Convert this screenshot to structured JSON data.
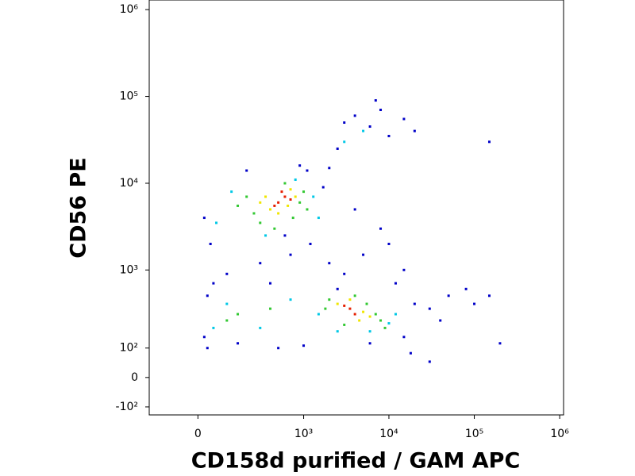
{
  "chart_data": {
    "type": "scatter",
    "x_label": "CD158d purified / GAM APC",
    "y_label": "CD56 PE",
    "xlim": [
      -200,
      1110000
    ],
    "ylim": [
      -135,
      1290000
    ],
    "xticks": [
      0,
      {
        "value": 1000,
        "label": "10³"
      },
      {
        "value": 10000,
        "label": "10⁴"
      },
      {
        "value": 100000,
        "label": "10⁵"
      },
      {
        "value": 1000000,
        "label": "10⁶"
      }
    ],
    "yticks": [
      {
        "value": -100,
        "label": "-10²"
      },
      0,
      {
        "value": 100,
        "label": "10²"
      },
      {
        "value": 1000,
        "label": "10³"
      },
      {
        "value": 10000,
        "label": "10⁴"
      },
      {
        "value": 100000,
        "label": "10⁵"
      },
      {
        "value": 1000000,
        "label": "10⁶"
      }
    ],
    "series": [
      {
        "color": "#0000c8",
        "x": [
          20,
          40,
          1700,
          2000,
          3000,
          4000,
          6000,
          8000,
          10000,
          15000,
          2500,
          7000,
          20000,
          1200,
          2000,
          5000,
          10000,
          3000,
          700,
          300,
          100,
          30,
          20,
          150,
          500,
          1000,
          6000,
          15000,
          20000,
          30000,
          50000,
          100000,
          150000,
          200000,
          30000,
          18000,
          600,
          200,
          900,
          1100,
          4000,
          8000,
          15000,
          80000,
          40000,
          12000,
          2500,
          400,
          50,
          150000,
          30
        ],
        "y": [
          4000,
          2000,
          9000,
          15000,
          50000,
          60000,
          45000,
          70000,
          35000,
          55000,
          25000,
          90000,
          40000,
          2000,
          1200,
          1500,
          2000,
          900,
          1500,
          1200,
          900,
          500,
          150,
          120,
          100,
          110,
          120,
          150,
          400,
          350,
          500,
          400,
          500,
          120,
          50,
          80,
          2500,
          14000,
          16000,
          14000,
          5000,
          3000,
          1000,
          600,
          250,
          700,
          600,
          700,
          700,
          30000,
          100
        ]
      },
      {
        "color": "#00c8e6",
        "x": [
          120,
          1300,
          350,
          800,
          1500,
          60,
          1500,
          10000,
          2500,
          6000,
          12000,
          100,
          300,
          700,
          5000,
          3000,
          50
        ],
        "y": [
          8000,
          7000,
          2500,
          11000,
          4000,
          3500,
          300,
          230,
          180,
          180,
          300,
          400,
          200,
          450,
          40000,
          30000,
          200
        ]
      },
      {
        "color": "#32c832",
        "x": [
          250,
          300,
          900,
          1000,
          200,
          450,
          600,
          750,
          150,
          1100,
          2000,
          1800,
          7000,
          8000,
          3000,
          5500,
          4000,
          9000,
          150,
          400,
          100
        ],
        "y": [
          4500,
          3500,
          6000,
          8000,
          7000,
          3000,
          10000,
          4000,
          5500,
          5000,
          450,
          350,
          300,
          250,
          220,
          400,
          500,
          200,
          300,
          350,
          250
        ]
      },
      {
        "color": "#f0e600",
        "x": [
          400,
          650,
          800,
          350,
          500,
          700,
          300,
          2500,
          5000,
          4500,
          6000,
          3500
        ],
        "y": [
          5000,
          5500,
          7000,
          7000,
          4500,
          8500,
          6000,
          400,
          320,
          250,
          280,
          450
        ]
      },
      {
        "color": "#e61e00",
        "x": [
          500,
          600,
          450,
          700,
          550,
          3500,
          4000,
          3000
        ],
        "y": [
          6000,
          7000,
          5500,
          6500,
          8000,
          350,
          300,
          380
        ]
      }
    ]
  }
}
